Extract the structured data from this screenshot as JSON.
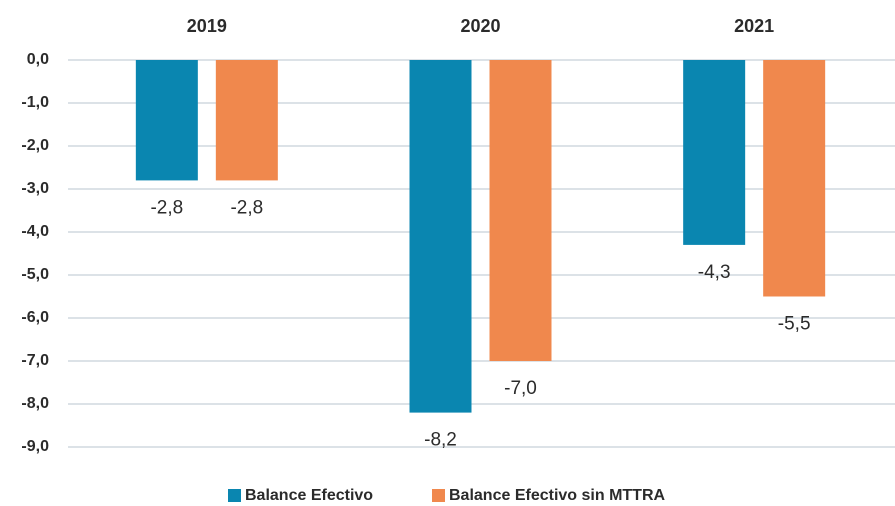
{
  "chart_data": {
    "type": "bar",
    "categories": [
      "2019",
      "2020",
      "2021"
    ],
    "series": [
      {
        "name": "Balance Efectivo",
        "color": "#0a86b0",
        "values": [
          -2.8,
          -8.2,
          -4.3
        ],
        "value_labels": [
          "-2,8",
          "-8,2",
          "-4,3"
        ]
      },
      {
        "name": "Balance Efectivo sin MTTRA",
        "color": "#f0884d",
        "values": [
          -2.8,
          -7.0,
          -5.5
        ],
        "value_labels": [
          "-2,8",
          "-7,0",
          "-5,5"
        ]
      }
    ],
    "ylim": [
      -9,
      0
    ],
    "yticks": [
      {
        "value": 0,
        "label": "0,0"
      },
      {
        "value": -1,
        "label": "-1,0"
      },
      {
        "value": -2,
        "label": "-2,0"
      },
      {
        "value": -3,
        "label": "-3,0"
      },
      {
        "value": -4,
        "label": "-4,0"
      },
      {
        "value": -5,
        "label": "-5,0"
      },
      {
        "value": -6,
        "label": "-6,0"
      },
      {
        "value": -7,
        "label": "-7,0"
      },
      {
        "value": -8,
        "label": "-8,0"
      },
      {
        "value": -9,
        "label": "-9,0"
      }
    ],
    "grid": true,
    "legend": "bottom"
  }
}
